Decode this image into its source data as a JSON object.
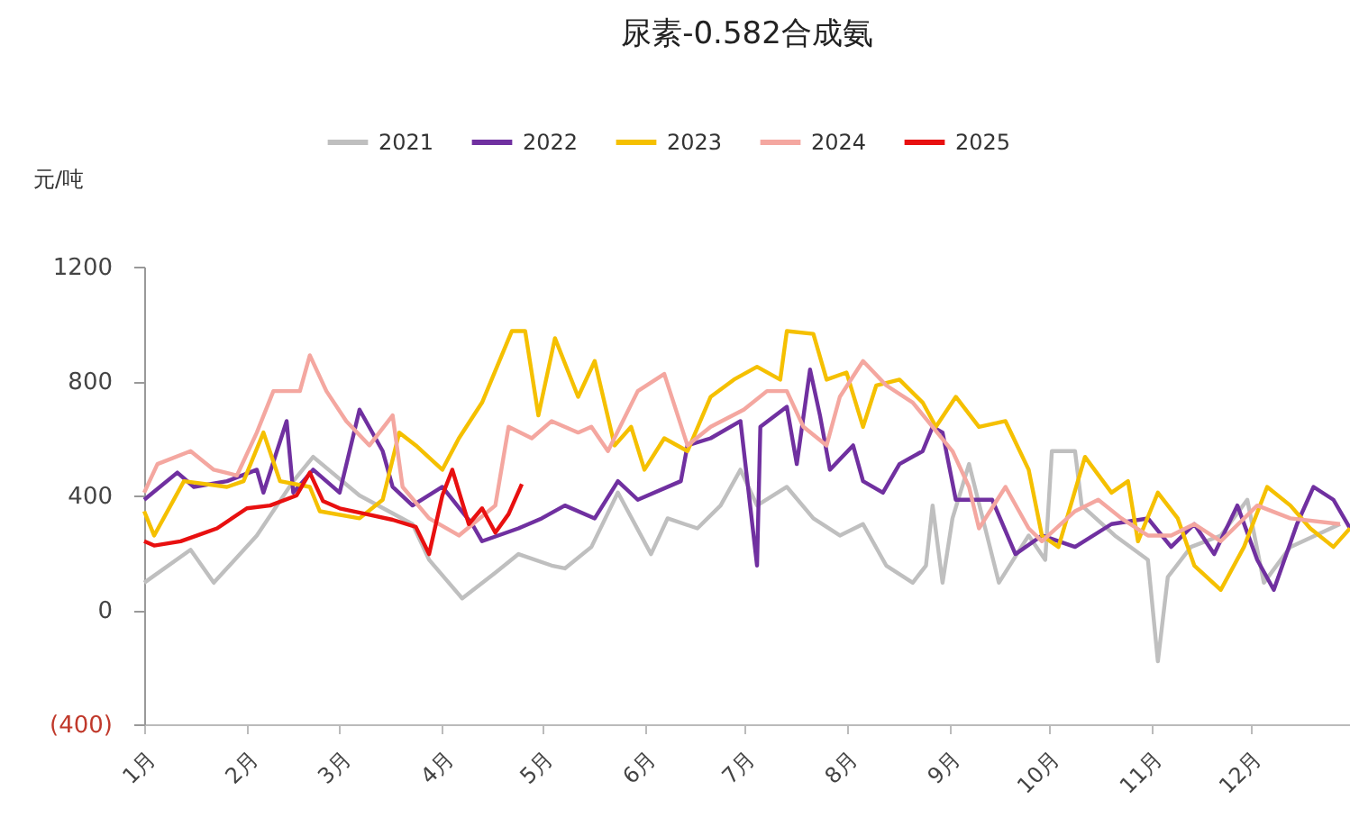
{
  "chart_data": {
    "type": "line",
    "title": "尿素-0.582合成氨",
    "ylabel": "元/吨",
    "legend": "top",
    "grid": false,
    "xlim": [
      "--01-01",
      "--12-31"
    ],
    "xticks": [
      {
        "value": "--01-01",
        "label": "1月"
      },
      {
        "value": "--02-01",
        "label": "2月"
      },
      {
        "value": "--03-01",
        "label": "3月"
      },
      {
        "value": "--04-01",
        "label": "4月"
      },
      {
        "value": "--05-01",
        "label": "5月"
      },
      {
        "value": "--06-01",
        "label": "6月"
      },
      {
        "value": "--07-01",
        "label": "7月"
      },
      {
        "value": "--08-01",
        "label": "8月"
      },
      {
        "value": "--09-01",
        "label": "9月"
      },
      {
        "value": "--10-01",
        "label": "10月"
      },
      {
        "value": "--11-01",
        "label": "11月"
      },
      {
        "value": "--12-01",
        "label": "12月"
      }
    ],
    "ylim": [
      -400,
      1200
    ],
    "yticks": [
      {
        "value": -400,
        "label": "(400)"
      },
      0,
      400,
      800,
      1200
    ],
    "series": [
      {
        "name": "2021",
        "color": "#bfbfbf",
        "x": [
          "--01-01",
          "--01-15",
          "--01-22",
          "--02-04",
          "--02-15",
          "--02-21",
          "--03-07",
          "--03-23",
          "--03-28",
          "--04-07",
          "--04-17",
          "--04-24",
          "--05-04",
          "--05-08",
          "--05-16",
          "--05-24",
          "--06-03",
          "--06-08",
          "--06-17",
          "--06-24",
          "--06-30",
          "--07-05",
          "--07-14",
          "--07-22",
          "--07-30",
          "--08-06",
          "--08-13",
          "--08-21",
          "--08-25",
          "--08-27",
          "--08-30",
          "--09-02",
          "--09-07",
          "--09-16",
          "--09-25",
          "--09-30",
          "--10-02",
          "--10-09",
          "--10-11",
          "--10-21",
          "--10-31",
          "--11-03",
          "--11-06",
          "--11-13",
          "--11-22",
          "--11-30",
          "--12-05",
          "--12-13",
          "--12-28"
        ],
        "values": [
          95,
          210,
          95,
          260,
          450,
          535,
          400,
          300,
          175,
          40,
          130,
          195,
          155,
          145,
          220,
          410,
          195,
          320,
          285,
          365,
          490,
          365,
          430,
          320,
          260,
          300,
          155,
          95,
          155,
          365,
          95,
          320,
          510,
          95,
          260,
          175,
          555,
          555,
          365,
          260,
          175,
          -180,
          115,
          220,
          260,
          385,
          95,
          220,
          300
        ]
      },
      {
        "name": "2022",
        "color": "#7030a0",
        "x": [
          "--01-01",
          "--01-11",
          "--01-16",
          "--01-26",
          "--02-04",
          "--02-06",
          "--02-13",
          "--02-15",
          "--02-21",
          "--03-01",
          "--03-07",
          "--03-14",
          "--03-17",
          "--03-23",
          "--04-01",
          "--04-10",
          "--04-13",
          "--04-24",
          "--05-01",
          "--05-08",
          "--05-17",
          "--05-24",
          "--05-30",
          "--06-12",
          "--06-14",
          "--06-21",
          "--06-30",
          "--07-05",
          "--07-06",
          "--07-14",
          "--07-17",
          "--07-21",
          "--07-24",
          "--07-27",
          "--08-03",
          "--08-06",
          "--08-12",
          "--08-17",
          "--08-24",
          "--08-27",
          "--08-30",
          "--09-03",
          "--09-14",
          "--09-21",
          "--09-29",
          "--10-09",
          "--10-20",
          "--10-31",
          "--11-07",
          "--11-14",
          "--11-20",
          "--11-27",
          "--12-03",
          "--12-08",
          "--12-15",
          "--12-20",
          "--12-26",
          "--12-31"
        ],
        "values": [
          385,
          480,
          430,
          450,
          490,
          410,
          660,
          410,
          490,
          410,
          700,
          555,
          430,
          365,
          430,
          300,
          240,
          285,
          320,
          365,
          320,
          450,
          385,
          450,
          575,
          600,
          660,
          155,
          640,
          710,
          510,
          840,
          680,
          490,
          575,
          450,
          410,
          510,
          555,
          640,
          620,
          385,
          385,
          195,
          260,
          220,
          300,
          320,
          220,
          300,
          195,
          365,
          175,
          70,
          300,
          430,
          385,
          285
        ]
      },
      {
        "name": "2023",
        "color": "#f5c000",
        "x": [
          "--01-01",
          "--01-04",
          "--01-13",
          "--01-26",
          "--01-31",
          "--02-06",
          "--02-11",
          "--02-20",
          "--02-23",
          "--03-07",
          "--03-14",
          "--03-19",
          "--03-24",
          "--04-01",
          "--04-06",
          "--04-13",
          "--04-22",
          "--04-26",
          "--04-30",
          "--05-05",
          "--05-12",
          "--05-17",
          "--05-23",
          "--05-28",
          "--06-01",
          "--06-07",
          "--06-14",
          "--06-21",
          "--06-28",
          "--07-05",
          "--07-12",
          "--07-14",
          "--07-22",
          "--07-26",
          "--08-01",
          "--08-06",
          "--08-10",
          "--08-17",
          "--08-24",
          "--08-28",
          "--09-03",
          "--09-10",
          "--09-18",
          "--09-25",
          "--09-29",
          "--10-04",
          "--10-12",
          "--10-20",
          "--10-25",
          "--10-28",
          "--11-03",
          "--11-09",
          "--11-14",
          "--11-22",
          "--11-29",
          "--12-06",
          "--12-13",
          "--12-19",
          "--12-26",
          "--12-31"
        ],
        "values": [
          345,
          260,
          450,
          430,
          450,
          620,
          450,
          430,
          345,
          320,
          385,
          620,
          575,
          490,
          600,
          725,
          975,
          975,
          680,
          950,
          745,
          870,
          575,
          640,
          490,
          600,
          555,
          745,
          805,
          850,
          805,
          975,
          965,
          805,
          830,
          640,
          785,
          805,
          725,
          640,
          745,
          640,
          660,
          490,
          260,
          220,
          535,
          410,
          450,
          240,
          410,
          320,
          155,
          70,
          220,
          430,
          365,
          285,
          220,
          285
        ]
      },
      {
        "name": "2024",
        "color": "#f4a7a0",
        "x": [
          "--01-01",
          "--01-05",
          "--01-15",
          "--01-22",
          "--01-29",
          "--02-04",
          "--02-09",
          "--02-17",
          "--02-20",
          "--02-25",
          "--03-03",
          "--03-10",
          "--03-17",
          "--03-20",
          "--03-28",
          "--04-06",
          "--04-17",
          "--04-21",
          "--04-28",
          "--05-04",
          "--05-12",
          "--05-16",
          "--05-21",
          "--05-30",
          "--06-07",
          "--06-14",
          "--06-21",
          "--07-01",
          "--07-08",
          "--07-14",
          "--07-19",
          "--07-26",
          "--07-30",
          "--08-06",
          "--08-13",
          "--08-21",
          "--08-27",
          "--09-02",
          "--09-07",
          "--09-10",
          "--09-18",
          "--09-25",
          "--09-29",
          "--10-09",
          "--10-16",
          "--10-23",
          "--10-31",
          "--11-07",
          "--11-14",
          "--11-22",
          "--12-03",
          "--12-13",
          "--12-28"
        ],
        "values": [
          410,
          510,
          555,
          490,
          470,
          620,
          765,
          765,
          890,
          765,
          660,
          575,
          680,
          430,
          320,
          260,
          365,
          640,
          600,
          660,
          620,
          640,
          555,
          765,
          825,
          575,
          640,
          700,
          765,
          765,
          640,
          575,
          745,
          870,
          785,
          725,
          640,
          555,
          430,
          285,
          430,
          285,
          240,
          345,
          385,
          320,
          260,
          260,
          300,
          240,
          365,
          320,
          300
        ]
      },
      {
        "name": "2025",
        "color": "#e81010",
        "x": [
          "--01-01",
          "--01-04",
          "--01-12",
          "--01-17",
          "--01-23",
          "--02-01",
          "--02-08",
          "--02-16",
          "--02-20",
          "--02-24",
          "--03-01",
          "--03-09",
          "--03-17",
          "--03-24",
          "--03-28",
          "--04-01",
          "--04-04",
          "--04-09",
          "--04-13",
          "--04-17",
          "--04-21",
          "--04-25"
        ],
        "values": [
          240,
          225,
          240,
          260,
          285,
          355,
          365,
          400,
          480,
          380,
          355,
          335,
          315,
          290,
          195,
          400,
          490,
          300,
          355,
          270,
          335,
          440
        ]
      }
    ]
  }
}
